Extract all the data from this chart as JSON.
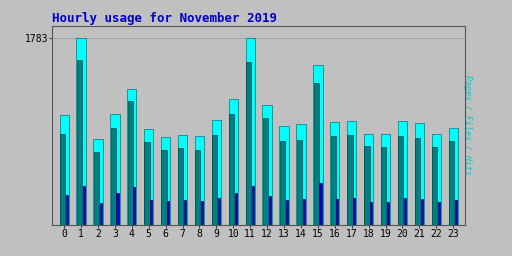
{
  "title": "Hourly usage for November 2019",
  "hours": [
    0,
    1,
    2,
    3,
    4,
    5,
    6,
    7,
    8,
    9,
    10,
    11,
    12,
    13,
    14,
    15,
    16,
    17,
    18,
    19,
    20,
    21,
    22,
    23
  ],
  "hits": [
    1050,
    1783,
    820,
    1060,
    1300,
    920,
    840,
    855,
    845,
    1000,
    1200,
    1783,
    1150,
    940,
    960,
    1530,
    980,
    990,
    870,
    870,
    990,
    970,
    870,
    930
  ],
  "files": [
    870,
    1580,
    700,
    930,
    1180,
    790,
    720,
    735,
    720,
    860,
    1060,
    1560,
    1020,
    800,
    810,
    1360,
    850,
    860,
    750,
    740,
    850,
    830,
    740,
    800
  ],
  "pages": [
    290,
    370,
    210,
    300,
    360,
    240,
    230,
    235,
    230,
    260,
    300,
    370,
    280,
    240,
    250,
    400,
    250,
    255,
    220,
    215,
    255,
    245,
    215,
    240
  ],
  "ylim": [
    0,
    1900
  ],
  "ytick": 1783,
  "background_color": "#c0c0c0",
  "hits_color": "#00ffff",
  "files_color": "#008080",
  "pages_color": "#0000cc",
  "title_color": "#0000cc",
  "ylabel_color": "#00cccc",
  "grid_color": "#a0a0a0",
  "title_fontsize": 9,
  "ylabel_text": "Pages / Files / Hits",
  "bar_width": 0.55,
  "thin_bar_width": 0.12
}
